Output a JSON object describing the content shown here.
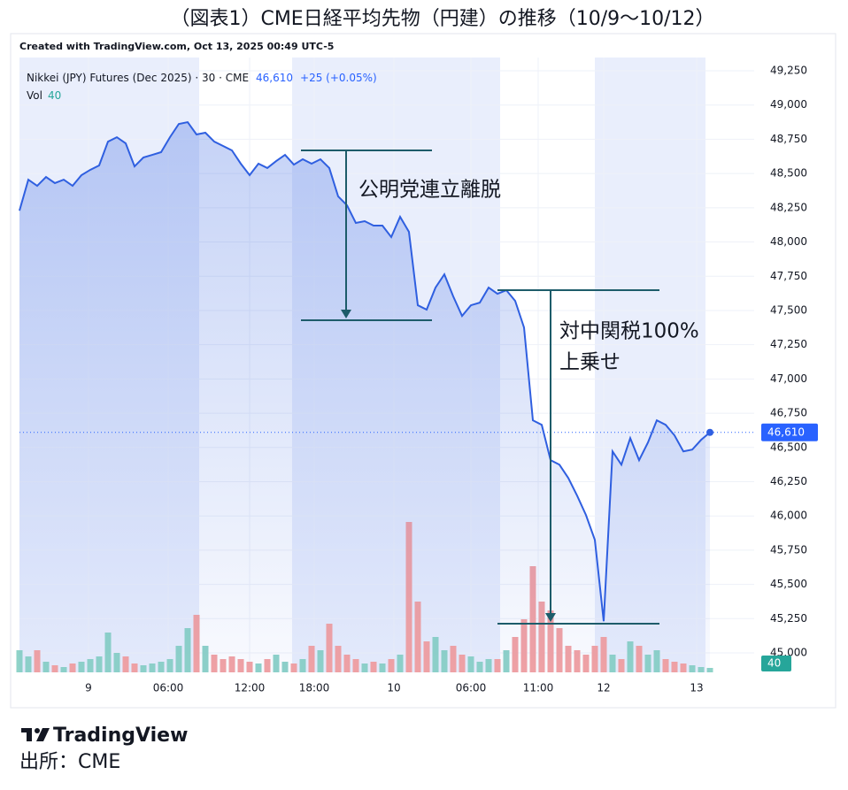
{
  "chart_data": {
    "type": "line",
    "title": "（図表1）CME日経平均先物（円建）の推移（10/9～10/12）",
    "credit": "Created with TradingView.com, Oct 13, 2025 00:49 UTC-5",
    "symbol": "Nikkei (JPY) Futures (Dec 2025) · 30 · CME",
    "change": "+25 (+0.05%)",
    "last_price": {
      "value": 46610,
      "label": "46,610"
    },
    "volume_label": "Vol",
    "last_volume": {
      "value": 40,
      "label": "40"
    },
    "annotations": [
      "公明党連立離脱",
      "対中関税100%",
      "上乗せ"
    ],
    "brand": "TradingView",
    "source": "出所：CME",
    "series": [
      {
        "name": "Nikkei (JPY) Futures (Dec 2025)",
        "color": "#2f5fe0",
        "values": [
          48229,
          48455,
          48410,
          48475,
          48430,
          48455,
          48410,
          48488,
          48527,
          48559,
          48733,
          48765,
          48720,
          48552,
          48617,
          48636,
          48656,
          48765,
          48862,
          48875,
          48785,
          48798,
          48733,
          48701,
          48669,
          48572,
          48488,
          48572,
          48540,
          48591,
          48636,
          48565,
          48604,
          48572,
          48604,
          48540,
          48333,
          48268,
          48139,
          48152,
          48120,
          48120,
          48036,
          48184,
          48074,
          47538,
          47506,
          47667,
          47764,
          47603,
          47460,
          47538,
          47557,
          47667,
          47622,
          47648,
          47570,
          47376,
          46698,
          46665,
          46407,
          46374,
          46277,
          46148,
          46006,
          45825,
          45231,
          46471,
          46374,
          46568,
          46407,
          46536,
          46698,
          46665,
          46588,
          46471,
          46484,
          46555,
          46610
        ]
      },
      {
        "name": "Vol",
        "up_color": "#8fd3c8",
        "down_color": "#f4a3a3",
        "values": [
          200,
          144,
          200,
          96,
          64,
          48,
          80,
          96,
          120,
          144,
          360,
          176,
          144,
          80,
          64,
          80,
          96,
          120,
          240,
          400,
          520,
          240,
          160,
          120,
          144,
          120,
          96,
          80,
          120,
          160,
          96,
          80,
          120,
          240,
          200,
          440,
          240,
          160,
          120,
          80,
          96,
          80,
          120,
          160,
          1360,
          640,
          280,
          320,
          200,
          240,
          160,
          144,
          96,
          120,
          120,
          200,
          320,
          480,
          960,
          640,
          560,
          400,
          240,
          200,
          160,
          240,
          320,
          160,
          120,
          280,
          240,
          160,
          200,
          120,
          96,
          80,
          64,
          48,
          40
        ]
      }
    ],
    "xlim": [
      0,
      83
    ],
    "xticks": [
      {
        "value": 7.8,
        "label": "9"
      },
      {
        "value": 16.8,
        "label": "06:00"
      },
      {
        "value": 26,
        "label": "12:00"
      },
      {
        "value": 33.3,
        "label": "18:00"
      },
      {
        "value": 42.3,
        "label": "10"
      },
      {
        "value": 51,
        "label": "06:00"
      },
      {
        "value": 58.6,
        "label": "11:00"
      },
      {
        "value": 66,
        "label": "12"
      },
      {
        "value": 76.5,
        "label": "13"
      }
    ],
    "ylim": [
      44858,
      49347
    ],
    "yticks": [
      {
        "value": 45000,
        "label": "45,000"
      },
      {
        "value": 45250,
        "label": "45,250"
      },
      {
        "value": 45500,
        "label": "45,500"
      },
      {
        "value": 45750,
        "label": "45,750"
      },
      {
        "value": 46000,
        "label": "46,000"
      },
      {
        "value": 46250,
        "label": "46,250"
      },
      {
        "value": 46500,
        "label": "46,500"
      },
      {
        "value": 46750,
        "label": "46,750"
      },
      {
        "value": 47000,
        "label": "47,000"
      },
      {
        "value": 47250,
        "label": "47,250"
      },
      {
        "value": 47500,
        "label": "47,500"
      },
      {
        "value": 47750,
        "label": "47,750"
      },
      {
        "value": 48000,
        "label": "48,000"
      },
      {
        "value": 48250,
        "label": "48,250"
      },
      {
        "value": 48500,
        "label": "48,500"
      },
      {
        "value": 48750,
        "label": "48,750"
      },
      {
        "value": 49000,
        "label": "49,000"
      },
      {
        "value": 49250,
        "label": "49,250"
      }
    ],
    "grid": true,
    "grid_color": "#eef1f8"
  }
}
